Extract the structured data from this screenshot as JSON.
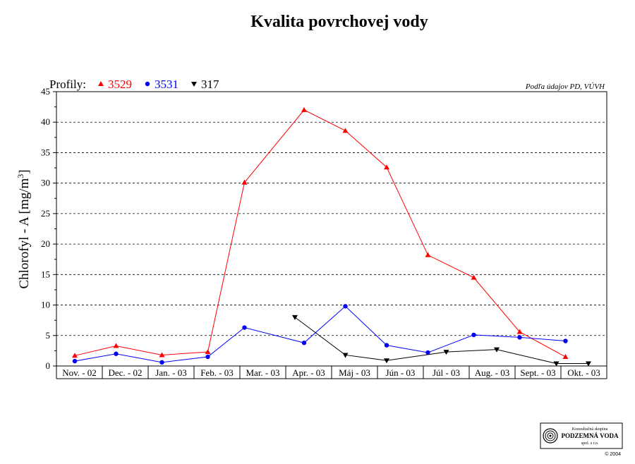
{
  "chart_data": {
    "type": "line",
    "title": "Kvalita povrchovej vody",
    "ylabel_main": "Chlorofyl - A [mg/m",
    "ylabel_sup": "3",
    "ylabel_end": "]",
    "xlabel": "",
    "ylim": [
      0,
      45
    ],
    "yticks": [
      0,
      5,
      10,
      15,
      20,
      25,
      30,
      35,
      40,
      45
    ],
    "grid": "horizontal-dashed",
    "legend_prefix": "Profily:",
    "legend_placement": "top-left",
    "categories": [
      "Nov. - 02",
      "Dec. - 02",
      "Jan. - 03",
      "Feb. - 03",
      "Mar. - 03",
      "Apr. - 03",
      "Máj - 03",
      "Jún - 03",
      "Júl - 03",
      "Aug. - 03",
      "Sept. - 03",
      "Okt. - 03"
    ],
    "series": [
      {
        "name": "3529",
        "color": "#ff0000",
        "marker": "triangle-up",
        "points": [
          [
            0.4,
            1.7
          ],
          [
            1.3,
            3.3
          ],
          [
            2.3,
            1.8
          ],
          [
            3.3,
            2.3
          ],
          [
            4.1,
            30.1
          ],
          [
            5.4,
            42.0
          ],
          [
            6.3,
            38.6
          ],
          [
            7.2,
            32.6
          ],
          [
            8.1,
            18.2
          ],
          [
            9.1,
            14.5
          ],
          [
            10.1,
            5.6
          ],
          [
            11.1,
            1.5
          ]
        ]
      },
      {
        "name": "3531",
        "color": "#0000ff",
        "marker": "circle",
        "points": [
          [
            0.4,
            0.8
          ],
          [
            1.3,
            2.0
          ],
          [
            2.3,
            0.6
          ],
          [
            3.3,
            1.5
          ],
          [
            4.1,
            6.3
          ],
          [
            5.4,
            3.8
          ],
          [
            6.3,
            9.8
          ],
          [
            7.2,
            3.4
          ],
          [
            8.1,
            2.2
          ],
          [
            9.1,
            5.1
          ],
          [
            10.1,
            4.7
          ],
          [
            11.1,
            4.1
          ]
        ]
      },
      {
        "name": "317",
        "color": "#000000",
        "marker": "triangle-down",
        "points": [
          [
            5.2,
            8.0
          ],
          [
            6.3,
            1.8
          ],
          [
            7.2,
            0.9
          ],
          [
            8.5,
            2.3
          ],
          [
            9.6,
            2.7
          ],
          [
            10.9,
            0.4
          ],
          [
            11.6,
            0.4
          ]
        ]
      }
    ]
  },
  "source_note": "Podľa údajov PD, VÚVH",
  "logo": {
    "line1": "Konzultačná skupina",
    "line2": "PODZEMNÁ VODA",
    "line3": "spol. s r.o.",
    "copyright": "© 2004"
  }
}
